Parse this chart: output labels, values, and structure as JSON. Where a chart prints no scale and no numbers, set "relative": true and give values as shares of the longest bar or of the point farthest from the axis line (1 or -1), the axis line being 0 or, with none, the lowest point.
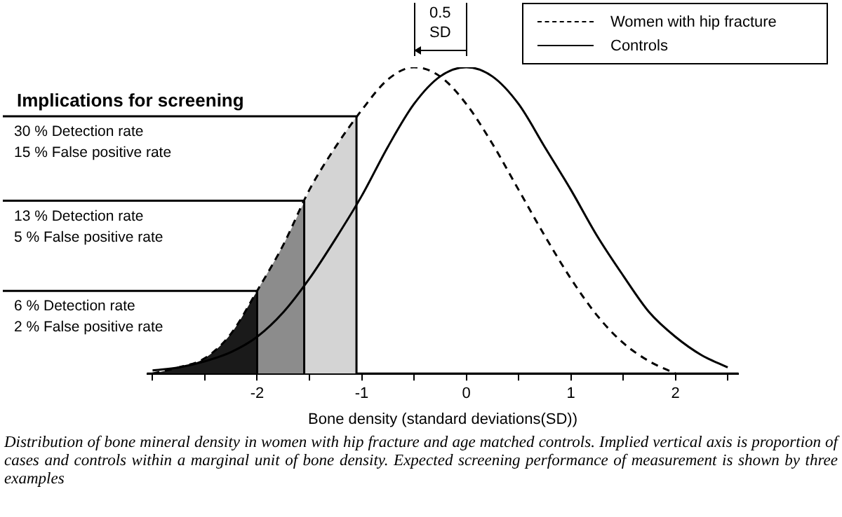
{
  "chart_data": {
    "type": "line",
    "relative": true,
    "xlabel": "Bone density (standard deviations(SD))",
    "x": [
      -3,
      -2.75,
      -2.5,
      -2.25,
      -2,
      -1.75,
      -1.5,
      -1.25,
      -1,
      -0.75,
      -0.5,
      -0.25,
      0,
      0.25,
      0.5,
      0.75,
      1,
      1.25,
      1.5,
      1.75,
      2,
      2.25,
      2.5
    ],
    "series": [
      {
        "name": "Women with hip fracture",
        "color": "#000000",
        "line_style": "dashed",
        "values": [
          0,
          0.02,
          0.05,
          0.13,
          0.27,
          0.42,
          0.6,
          0.74,
          0.86,
          0.96,
          1,
          0.97,
          0.88,
          0.75,
          0.6,
          0.45,
          0.31,
          0.19,
          0.1,
          0.04,
          0,
          null,
          null
        ]
      },
      {
        "name": "Controls",
        "color": "#000000",
        "line_style": "solid",
        "values": [
          0.01,
          0.02,
          0.04,
          0.07,
          0.12,
          0.2,
          0.31,
          0.44,
          0.58,
          0.74,
          0.88,
          0.97,
          1,
          0.97,
          0.88,
          0.74,
          0.6,
          0.45,
          0.32,
          0.2,
          0.12,
          0.06,
          0.02
        ]
      },
      {
        "type": "area",
        "color": "#1a1a1a",
        "x": [
          -3,
          -2.75,
          -2.5,
          -2.25,
          -2
        ],
        "values": [
          0,
          0.02,
          0.05,
          0.13,
          0.27
        ]
      },
      {
        "type": "area",
        "color": "#8c8c8c",
        "x": [
          -2,
          -1.75,
          -1.55
        ],
        "values": [
          0.27,
          0.42,
          0.56
        ]
      },
      {
        "type": "area",
        "color": "#d4d4d4",
        "x": [
          -1.55,
          -1.5,
          -1.25,
          -1.05
        ],
        "values": [
          0.56,
          0.6,
          0.74,
          0.84
        ]
      }
    ],
    "xlim": [
      -3.05,
      2.6
    ],
    "xticks": [
      {
        "value": -3,
        "label": null
      },
      {
        "value": -2.5,
        "label": null
      },
      -2,
      {
        "value": -1.5,
        "label": null
      },
      -1,
      {
        "value": -0.5,
        "label": null
      },
      0,
      {
        "value": 0.5,
        "label": null
      },
      1,
      {
        "value": 1.5,
        "label": null
      },
      2,
      {
        "value": 2.5,
        "label": null
      }
    ],
    "ref_lines": [
      {
        "axis": "x",
        "value": -1.05,
        "label": "30 % Detection rate\n15 % False positive rate"
      },
      {
        "axis": "x",
        "value": -1.55,
        "label": "13 % Detection rate\n5 % False positive rate"
      },
      {
        "axis": "x",
        "value": -2,
        "label": "6 % Detection rate\n2 % False positive rate"
      }
    ],
    "annotations": [
      "0.5\nSD",
      "Implications for screening",
      "Distribution of bone mineral density in women with hip fracture and age matched controls. Implied vertical axis is proportion of cases and controls within a marginal unit of bone density. Expected screening performance of measurement is shown by three examples"
    ],
    "legend": "top right"
  }
}
